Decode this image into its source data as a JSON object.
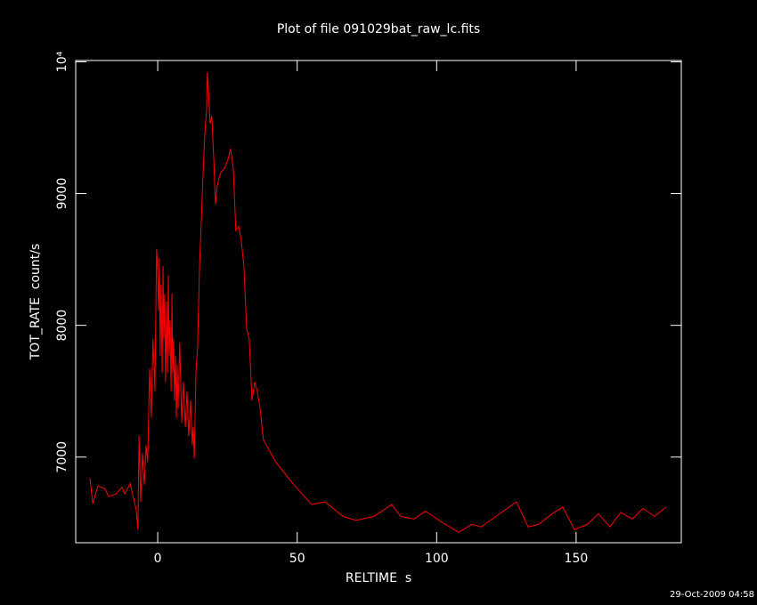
{
  "chart_data": {
    "type": "line",
    "title": "Plot of file 091029bat_raw_lc.fits",
    "xlabel": "RELTIME  s",
    "ylabel": "TOT_RATE  count/s",
    "timestamp": "29-Oct-2009 04:58",
    "xlim": [
      -29.4,
      187.7
    ],
    "ylim": [
      6350,
      10010
    ],
    "xticks": [
      0,
      50,
      100,
      150
    ],
    "yticks": [
      7000,
      8000,
      9000,
      {
        "value": 10000,
        "label": "10⁴"
      }
    ],
    "series": [
      {
        "color": "#ff0000",
        "x": [
          -24.3,
          -23.3,
          -21.4,
          -18.9,
          -17.6,
          -15.0,
          -12.8,
          -11.8,
          -9.9,
          -8.7,
          -7.7,
          -7.1,
          -6.7,
          -6.1,
          -5.5,
          -4.8,
          -4.2,
          -3.6,
          -2.9,
          -2.3,
          -1.7,
          -1.0,
          -0.4,
          -0.1,
          0.3,
          0.6,
          0.9,
          1.2,
          1.6,
          1.9,
          2.2,
          2.5,
          2.8,
          3.2,
          3.5,
          3.8,
          4.1,
          4.4,
          4.8,
          5.1,
          5.4,
          5.7,
          6.0,
          6.4,
          6.7,
          7.0,
          7.3,
          7.9,
          8.6,
          9.2,
          9.9,
          10.5,
          11.1,
          11.8,
          12.4,
          12.7,
          13.1,
          13.4,
          13.7,
          14.3,
          15.0,
          15.6,
          16.2,
          16.9,
          17.5,
          17.8,
          18.1,
          18.8,
          19.4,
          20.1,
          20.7,
          21.3,
          22.0,
          22.6,
          23.9,
          25.2,
          26.1,
          27.1,
          28.0,
          29.0,
          29.9,
          30.9,
          31.9,
          32.8,
          33.8,
          34.8,
          35.7,
          36.7,
          37.9,
          42.4,
          48.8,
          55.2,
          60.0,
          66.4,
          71.1,
          77.5,
          83.9,
          87.1,
          91.9,
          96.0,
          101.5,
          107.9,
          112.7,
          115.9,
          120.6,
          128.6,
          132.8,
          136.6,
          141.4,
          145.2,
          149.4,
          154.1,
          158.0,
          162.1,
          166.0,
          170.1,
          174.0,
          178.1,
          182.2
        ],
        "values": [
          6840,
          6650,
          6780,
          6760,
          6700,
          6720,
          6770,
          6720,
          6800,
          6690,
          6600,
          6450,
          7160,
          6660,
          7030,
          6790,
          7090,
          6960,
          7670,
          7300,
          7900,
          7500,
          8580,
          8450,
          8110,
          8510,
          7770,
          8310,
          7640,
          8450,
          7900,
          8240,
          7570,
          8180,
          7640,
          8380,
          7770,
          8040,
          7500,
          8240,
          7640,
          7900,
          7430,
          7770,
          7300,
          7700,
          7370,
          7870,
          7260,
          7570,
          7230,
          7500,
          7160,
          7430,
          7090,
          7230,
          6990,
          7300,
          7640,
          7840,
          8450,
          8780,
          9120,
          9460,
          9630,
          9920,
          9830,
          9530,
          9590,
          9260,
          8920,
          9050,
          9120,
          9160,
          9190,
          9260,
          9340,
          9190,
          8720,
          8750,
          8650,
          8450,
          7970,
          7900,
          7430,
          7570,
          7500,
          7370,
          7130,
          6960,
          6790,
          6640,
          6660,
          6550,
          6520,
          6550,
          6640,
          6550,
          6530,
          6590,
          6510,
          6430,
          6490,
          6470,
          6540,
          6660,
          6470,
          6490,
          6570,
          6620,
          6450,
          6490,
          6570,
          6470,
          6580,
          6530,
          6610,
          6550,
          6620
        ]
      }
    ]
  }
}
